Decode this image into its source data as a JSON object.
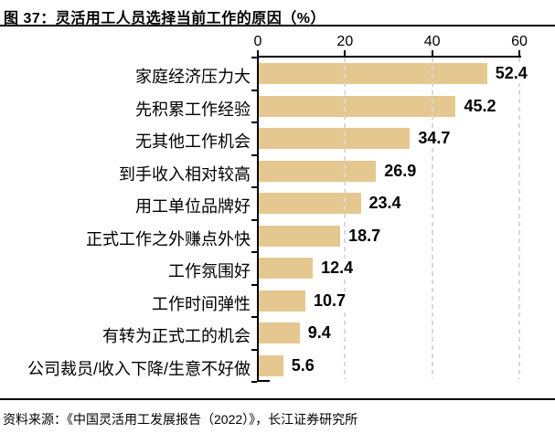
{
  "title": "图 37：灵活用工人员选择当前工作的原因（%）",
  "source": "资料来源：《中国灵活用工发展报告（2022）》，长江证券研究所",
  "colors": {
    "bar": "#E5C88F",
    "gridline": "#D9D9D9",
    "axis": "#000000",
    "text": "#000000"
  },
  "chart_data": {
    "type": "bar",
    "orientation": "horizontal",
    "title": "灵活用工人员选择当前工作的原因（%）",
    "categories": [
      "家庭经济压力大",
      "先积累工作经验",
      "无其他工作机会",
      "到手收入相对较高",
      "用工单位品牌好",
      "正式工作之外赚点外快",
      "工作氛围好",
      "工作时间弹性",
      "有转为正式工的机会",
      "公司裁员/收入下降/生意不好做"
    ],
    "values": [
      52.4,
      45.2,
      34.7,
      26.9,
      23.4,
      18.7,
      12.4,
      10.7,
      9.4,
      5.6
    ],
    "xlabel": "",
    "ylabel": "",
    "xlim": [
      0,
      60
    ],
    "xticks": [
      0,
      20,
      40,
      60
    ],
    "grid": "vertical-dashed",
    "value_labels": true,
    "legend": "none"
  }
}
